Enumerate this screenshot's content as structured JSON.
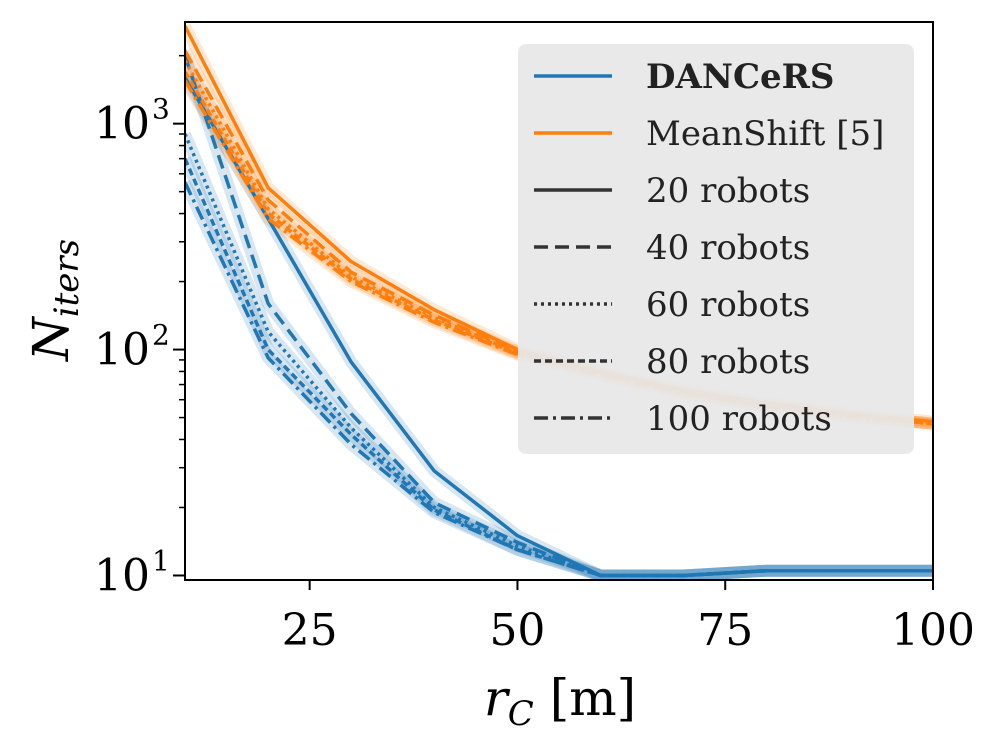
{
  "chart_data": {
    "type": "line",
    "title": "",
    "xlabel_main": "r",
    "xlabel_sub": "C",
    "xlabel_unit": " [m]",
    "ylabel_main": "N",
    "ylabel_sub": "iters",
    "xlim": [
      10,
      100
    ],
    "ylim_log10": [
      0.98,
      3.45
    ],
    "yscale": "log",
    "x_ticks": [
      25,
      50,
      75,
      100
    ],
    "y_ticks": [
      {
        "base": "10",
        "exp": "1",
        "value": 10
      },
      {
        "base": "10",
        "exp": "2",
        "value": 100
      },
      {
        "base": "10",
        "exp": "3",
        "value": 1000
      }
    ],
    "x": [
      10,
      20,
      30,
      40,
      50,
      60,
      70,
      80,
      90,
      100
    ],
    "colors": {
      "dancers": "#1f77b4",
      "meanshift": "#ff7f0e"
    },
    "legend": {
      "position": "top-right",
      "entries": [
        {
          "label": "DANCeRS",
          "bold": true,
          "color": "#1f77b4",
          "style": "solid"
        },
        {
          "label": "MeanShift [5]",
          "bold": false,
          "color": "#ff7f0e",
          "style": "solid"
        },
        {
          "label": "20 robots",
          "bold": false,
          "color": "#333333",
          "style": "solid"
        },
        {
          "label": "40 robots",
          "bold": false,
          "color": "#333333",
          "style": "dashed"
        },
        {
          "label": "60 robots",
          "bold": false,
          "color": "#333333",
          "style": "dotted"
        },
        {
          "label": "80 robots",
          "bold": false,
          "color": "#333333",
          "style": "densedash"
        },
        {
          "label": "100 robots",
          "bold": false,
          "color": "#333333",
          "style": "dashdot"
        }
      ]
    },
    "series": [
      {
        "name": "DANCeRS 20 robots",
        "method": "dancers",
        "style": "solid",
        "values": [
          1600,
          380,
          88,
          29,
          15,
          10,
          10,
          10.5,
          10.5,
          10.5
        ]
      },
      {
        "name": "DANCeRS 40 robots",
        "method": "dancers",
        "style": "dashed",
        "values": [
          2000,
          160,
          52,
          21,
          14,
          10,
          10,
          10.5,
          10.5,
          10.5
        ]
      },
      {
        "name": "DANCeRS 60 robots",
        "method": "dancers",
        "style": "dotted",
        "values": [
          900,
          120,
          45,
          20,
          13.5,
          10,
          10,
          10.5,
          10.5,
          10.5
        ]
      },
      {
        "name": "DANCeRS 80 robots",
        "method": "dancers",
        "style": "densedash",
        "values": [
          700,
          100,
          42,
          19.5,
          13,
          10,
          10,
          10.5,
          10.5,
          10.5
        ]
      },
      {
        "name": "DANCeRS 100 robots",
        "method": "dancers",
        "style": "dashdot",
        "values": [
          550,
          92,
          38,
          19,
          13,
          10,
          10,
          10.5,
          10.5,
          10.5
        ]
      },
      {
        "name": "MeanShift 20 robots",
        "method": "meanshift",
        "style": "solid",
        "values": [
          2700,
          520,
          245,
          150,
          100,
          80,
          66,
          58,
          52,
          48
        ]
      },
      {
        "name": "MeanShift 40 robots",
        "method": "meanshift",
        "style": "dashed",
        "values": [
          2100,
          460,
          220,
          142,
          98,
          79,
          65,
          57,
          51,
          47
        ]
      },
      {
        "name": "MeanShift 60 robots",
        "method": "meanshift",
        "style": "dotted",
        "values": [
          1900,
          420,
          210,
          138,
          97,
          78,
          65,
          57,
          51,
          47
        ]
      },
      {
        "name": "MeanShift 80 robots",
        "method": "meanshift",
        "style": "densedash",
        "values": [
          1700,
          400,
          205,
          135,
          96,
          78,
          64,
          56,
          51,
          47
        ]
      },
      {
        "name": "MeanShift 100 robots",
        "method": "meanshift",
        "style": "dashdot",
        "values": [
          1550,
          380,
          200,
          132,
          95,
          77,
          64,
          56,
          50,
          47
        ]
      }
    ]
  }
}
